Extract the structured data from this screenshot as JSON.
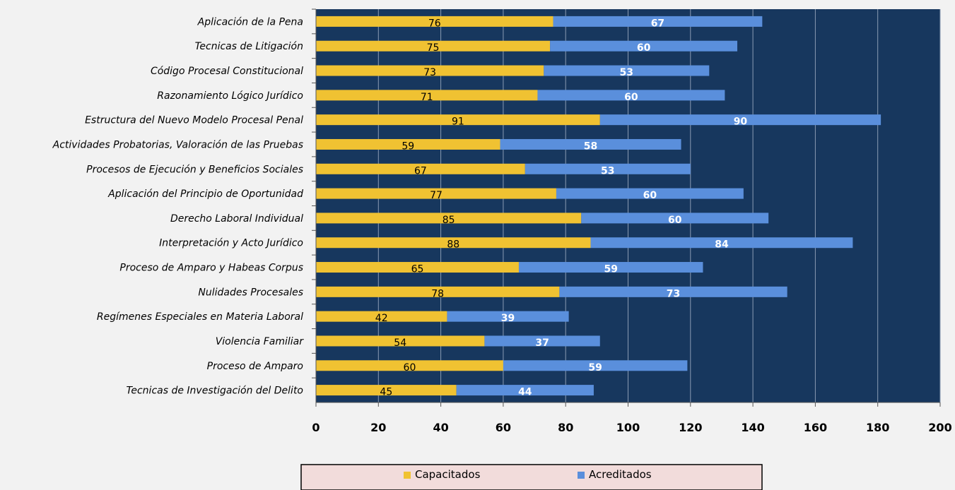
{
  "chart_data": {
    "type": "bar",
    "orientation": "horizontal",
    "stacked": true,
    "categories": [
      "Aplicación de la Pena",
      "Tecnicas de Litigación",
      "Código Procesal Constitucional",
      "Razonamiento Lógico Jurídico",
      "Estructura del Nuevo Modelo Procesal Penal",
      "Actividades Probatorias, Valoración de las Pruebas",
      "Procesos de Ejecución y Beneficios Sociales",
      "Aplicación del Principio de Oportunidad",
      "Derecho Laboral Individual",
      "Interpretación y Acto Jurídico",
      "Proceso de Amparo y Habeas Corpus",
      "Nulidades Procesales",
      "Regímenes Especiales en Materia Laboral",
      "Violencia Familiar",
      "Proceso de Amparo",
      "Tecnicas de Investigación del  Delito"
    ],
    "series": [
      {
        "name": "Capacitados",
        "color": "#f0c232",
        "values": [
          76,
          75,
          73,
          71,
          91,
          59,
          67,
          77,
          85,
          88,
          65,
          78,
          42,
          54,
          60,
          45
        ]
      },
      {
        "name": "Acreditados",
        "color": "#5a8fdc",
        "values": [
          67,
          60,
          53,
          60,
          90,
          58,
          53,
          60,
          60,
          84,
          59,
          73,
          39,
          37,
          59,
          44
        ]
      }
    ],
    "xlim": [
      0,
      200
    ],
    "xticks": [
      0,
      20,
      40,
      60,
      80,
      100,
      120,
      140,
      160,
      180,
      200
    ],
    "grid": true,
    "legend_position": "bottom",
    "plot_background": "#17375e",
    "page_background": "#f2f2f2",
    "legend_background": "#f2dcdb"
  }
}
